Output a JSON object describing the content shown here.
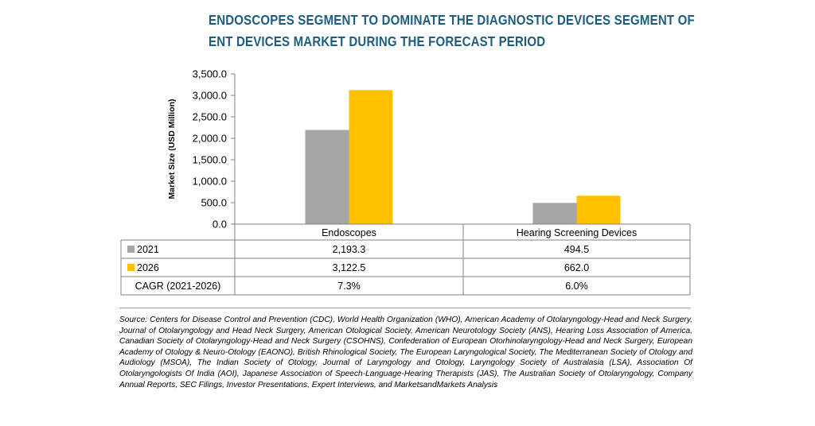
{
  "title": {
    "line1": "ENDOSCOPES SEGMENT TO DOMINATE THE DIAGNOSTIC DEVICES SEGMENT OF",
    "line2": "ENT DEVICES MARKET DURING THE FORECAST PERIOD"
  },
  "colors": {
    "series_2021": "#a6a6a6",
    "series_2026": "#ffc000",
    "title": "#1f5d7e",
    "divider": "#c9a227"
  },
  "chart_data": {
    "type": "bar",
    "title": "ENDOSCOPES SEGMENT TO DOMINATE THE DIAGNOSTIC DEVICES SEGMENT OF ENT DEVICES MARKET DURING THE FORECAST PERIOD",
    "xlabel": "",
    "ylabel": "Market Size (USD Million)",
    "ylim": [
      0,
      3500
    ],
    "yticks": [
      0,
      500,
      1000,
      1500,
      2000,
      2500,
      3000,
      3500
    ],
    "ytick_labels": [
      "0.0",
      "500.0",
      "1,000.0",
      "1,500.0",
      "2,000.0",
      "2,500.0",
      "3,000.0",
      "3,500.0"
    ],
    "categories": [
      "Endoscopes",
      "Hearing Screening Devices"
    ],
    "series": [
      {
        "name": "2021",
        "values": [
          2193.3,
          494.5
        ],
        "labels": [
          "2,193.3",
          "494.5"
        ],
        "color": "#a6a6a6"
      },
      {
        "name": "2026",
        "values": [
          3122.5,
          662.0
        ],
        "labels": [
          "3,122.5",
          "662.0"
        ],
        "color": "#ffc000"
      }
    ],
    "table_extra_rows": [
      {
        "name": "CAGR (2021-2026)",
        "values": [
          "7.3%",
          "6.0%"
        ]
      }
    ],
    "grid": false,
    "legend": "data table"
  },
  "source": "Source: Centers for Disease Control and Prevention (CDC), World Health Organization (WHO), American Academy of Otolaryngology-Head and Neck Surgery, Journal of Otolaryngology and Head Neck Surgery, American Otological Society, American Neurotology Society (ANS), Hearing Loss Association of America, Canadian Society of Otolaryngology-Head and Neck Surgery (CSOHNS), Confederation of European Otorhinolaryngology-Head and Neck Surgery, European Academy of Otology & Neuro-Otology (EAONO), British Rhinological Society, The European Laryngological Society, The Mediterranean Society of Otology and Audiology (MSOA), The Indian Society of Otology, Journal of Laryngology and Otology, Laryngology Society of Australasia (LSA), Association Of Otolaryngologists Of India (AOI), Japanese Association of Speech-Language-Hearing Therapists (JAS), The Australian Society of Otolaryngology, Company Annual Reports, SEC Filings, Investor Presentations, Expert Interviews, and MarketsandMarkets Analysis"
}
